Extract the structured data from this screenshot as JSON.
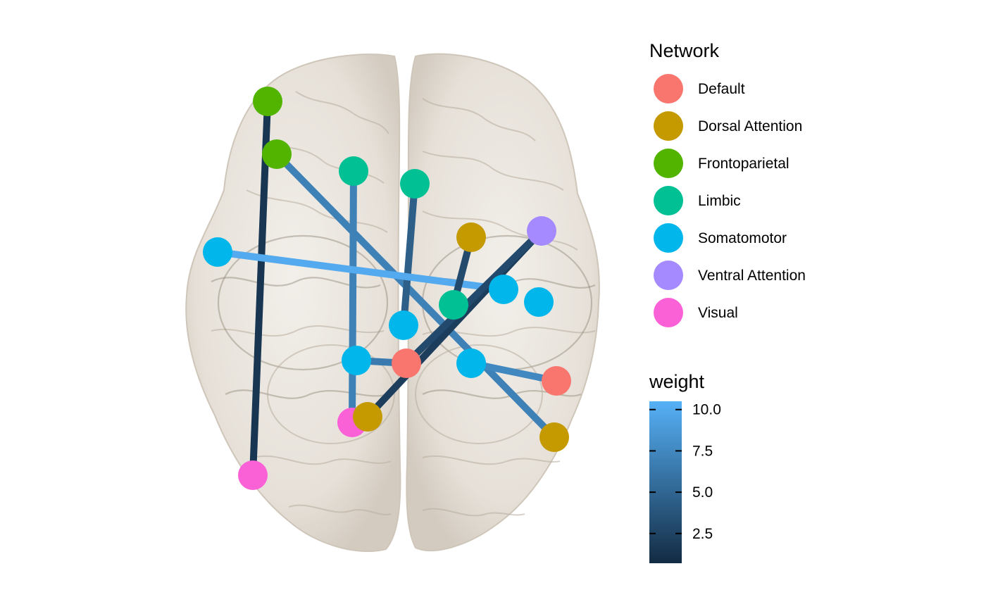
{
  "legend": {
    "network_title": "Network",
    "networks": [
      {
        "label": "Default",
        "color": "#F8766D"
      },
      {
        "label": "Dorsal Attention",
        "color": "#C49A00"
      },
      {
        "label": "Frontoparietal",
        "color": "#53B400"
      },
      {
        "label": "Limbic",
        "color": "#00C094"
      },
      {
        "label": "Somatomotor",
        "color": "#00B6EB"
      },
      {
        "label": "Ventral Attention",
        "color": "#A58AFF"
      },
      {
        "label": "Visual",
        "color": "#FB61D7"
      }
    ],
    "weight_title": "weight",
    "weight_ticks": [
      "10.0",
      "7.5",
      "5.0",
      "2.5"
    ],
    "weight_tick_values": [
      10.0,
      7.5,
      5.0,
      2.5
    ],
    "weight_range": [
      0.7,
      10.5
    ],
    "weight_color_low": "#132B43",
    "weight_color_high": "#56B1F7"
  },
  "nodes": [
    {
      "id": "n1",
      "network": "Frontoparietal"
    },
    {
      "id": "n2",
      "network": "Frontoparietal"
    },
    {
      "id": "n3",
      "network": "Limbic"
    },
    {
      "id": "n4",
      "network": "Limbic"
    },
    {
      "id": "n5",
      "network": "Dorsal Attention"
    },
    {
      "id": "n6",
      "network": "Ventral Attention"
    },
    {
      "id": "n7",
      "network": "Somatomotor"
    },
    {
      "id": "n8",
      "network": "Somatomotor"
    },
    {
      "id": "n9",
      "network": "Somatomotor"
    },
    {
      "id": "n10",
      "network": "Limbic"
    },
    {
      "id": "n11",
      "network": "Somatomotor"
    },
    {
      "id": "n12",
      "network": "Somatomotor"
    },
    {
      "id": "n13",
      "network": "Default"
    },
    {
      "id": "n14",
      "network": "Somatomotor"
    },
    {
      "id": "n15",
      "network": "Default"
    },
    {
      "id": "n16",
      "network": "Visual"
    },
    {
      "id": "n17",
      "network": "Dorsal Attention"
    },
    {
      "id": "n18",
      "network": "Dorsal Attention"
    },
    {
      "id": "n19",
      "network": "Visual"
    }
  ],
  "edges": [
    {
      "from": "n1",
      "to": "n19",
      "weight": 1.5
    },
    {
      "from": "n2",
      "to": "n18",
      "weight": 7.0
    },
    {
      "from": "n3",
      "to": "n16",
      "weight": 7.0
    },
    {
      "from": "n4",
      "to": "n11",
      "weight": 4.5
    },
    {
      "from": "n7",
      "to": "n9",
      "weight": 10.0
    },
    {
      "from": "n5",
      "to": "n10",
      "weight": 3.0
    },
    {
      "from": "n6",
      "to": "n17",
      "weight": 2.0
    },
    {
      "from": "n6",
      "to": "n13",
      "weight": 3.0
    },
    {
      "from": "n12",
      "to": "n13",
      "weight": 6.5
    },
    {
      "from": "n14",
      "to": "n15",
      "weight": 7.5
    }
  ]
}
